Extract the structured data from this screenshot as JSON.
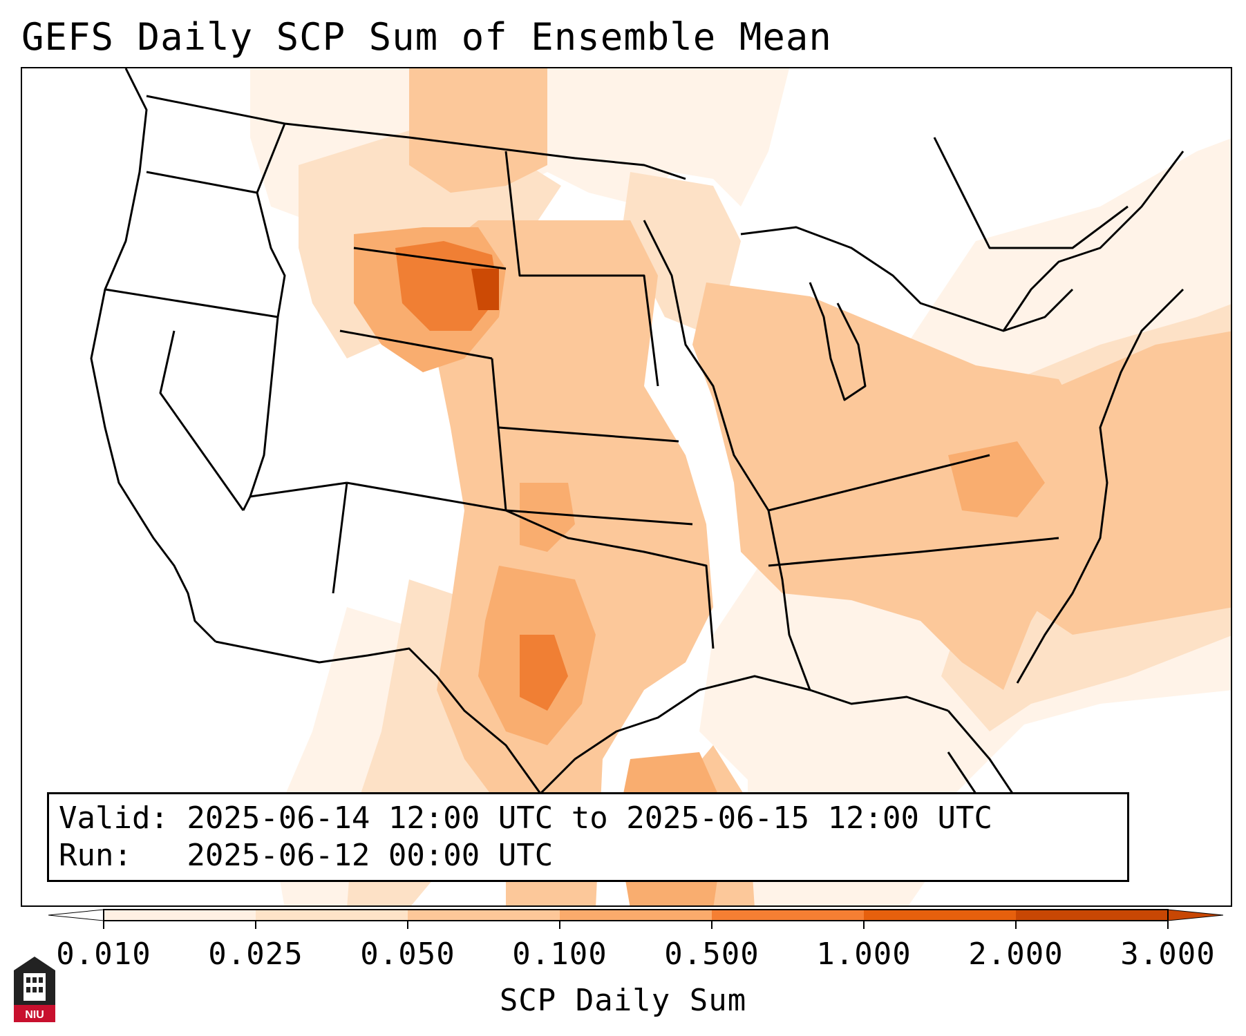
{
  "title": "GEFS Daily SCP Sum of Ensemble Mean",
  "info": {
    "valid_line": "Valid: 2025-06-14 12:00 UTC to 2025-06-15 12:00 UTC",
    "run_line": "Run:   2025-06-12 00:00 UTC"
  },
  "colorbar": {
    "label": "SCP Daily Sum",
    "ticks": [
      "0.010",
      "0.025",
      "0.050",
      "0.100",
      "0.500",
      "1.000",
      "2.000",
      "3.000"
    ],
    "colors": [
      "#fff0e3",
      "#fee3c8",
      "#fdc799",
      "#fbab6c",
      "#f57f33",
      "#e6600d",
      "#c84704"
    ],
    "extend": "both"
  },
  "map": {
    "region": "Contiguous United States",
    "field_colors": {
      "none": "#ffffff",
      "very_low": "#fff3e8",
      "low": "#fde1c6",
      "light": "#fcc89a",
      "moderate": "#f9ad6f",
      "high": "#f07f34",
      "very_high": "#e0630f",
      "max": "#cc4a05"
    }
  },
  "logo": {
    "text": "NIU"
  }
}
